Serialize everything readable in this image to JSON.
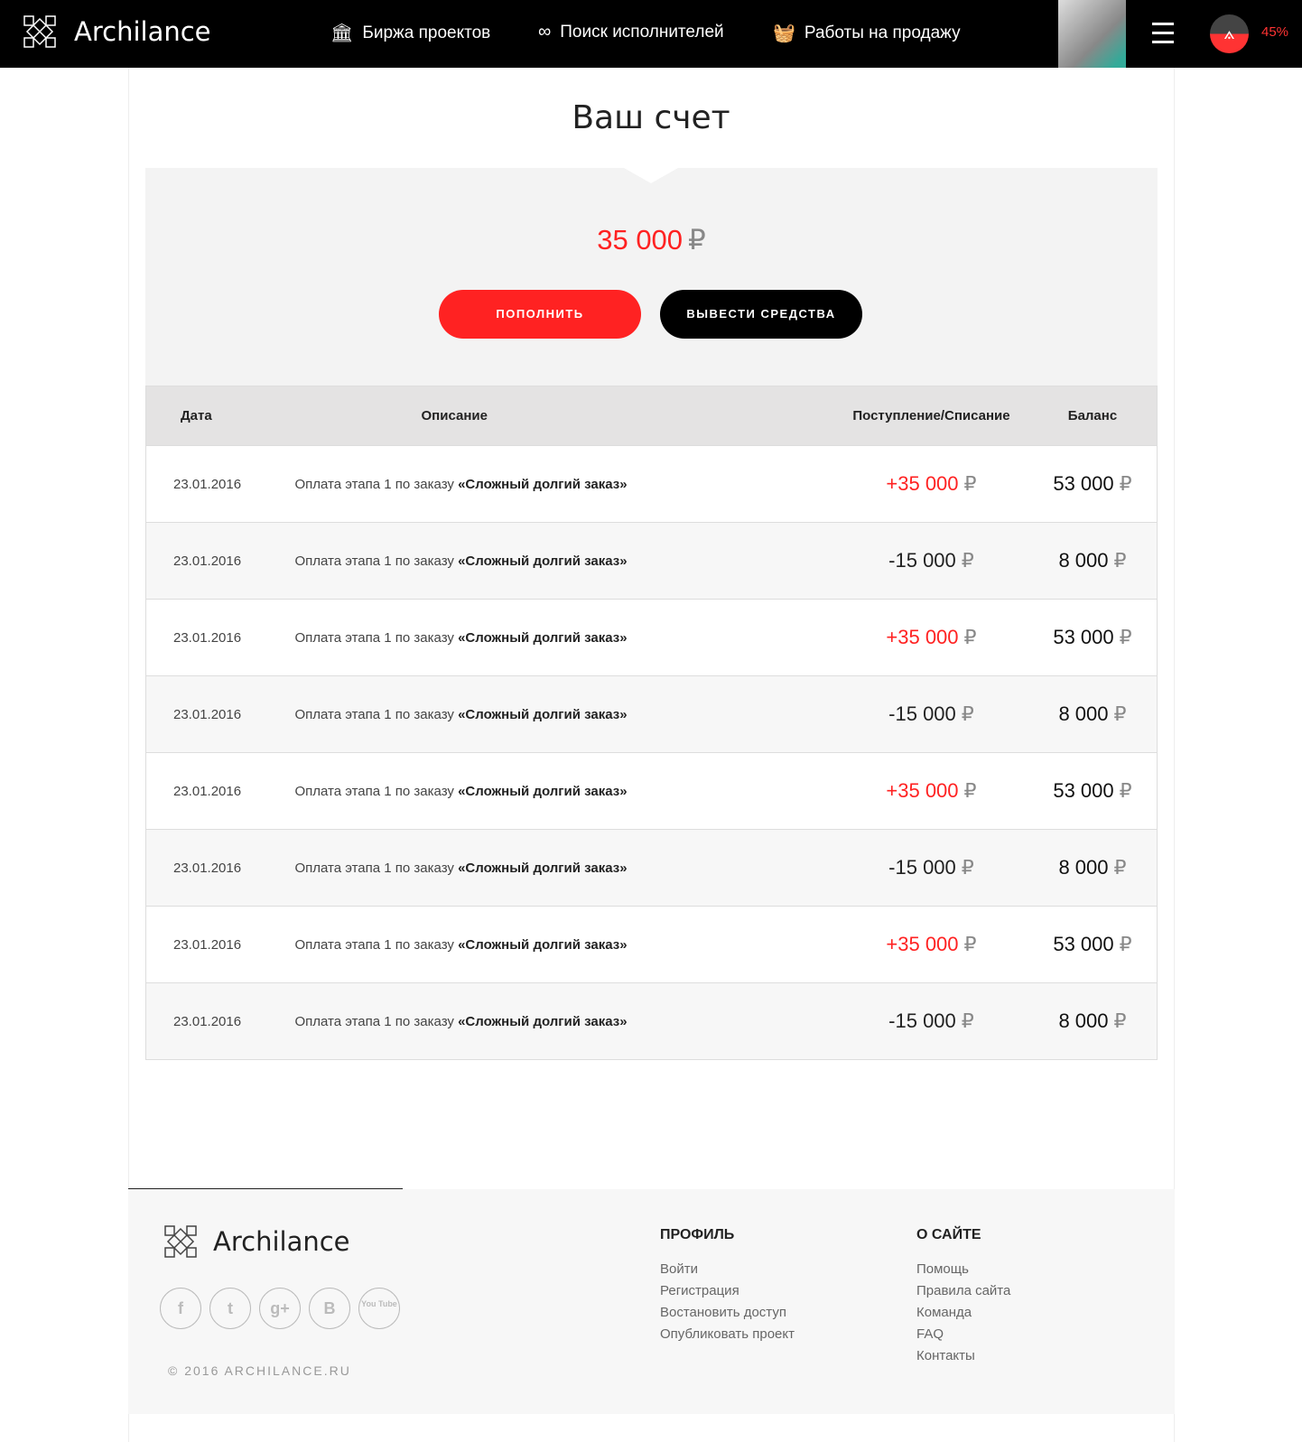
{
  "header": {
    "brand": "Archilance",
    "nav": [
      {
        "icon": "column-icon",
        "label": "Биржа проектов"
      },
      {
        "icon": "binoculars-icon",
        "label": "Поиск исполнителей"
      },
      {
        "icon": "basket-icon",
        "label": "Работы на продажу"
      }
    ],
    "progress": "45%",
    "progress_fraction": 0.45
  },
  "page": {
    "title": "Ваш счет",
    "balance": "35 000",
    "currency": "₽",
    "topup": "ПОПОЛНИТЬ",
    "withdraw": "ВЫВЕСТИ СРЕДСТВА"
  },
  "table": {
    "headers": [
      "Дата",
      "Описание",
      "Поступление/Списание",
      "Баланс"
    ],
    "rows": [
      {
        "date": "23.01.2016",
        "desc": "Оплата этапа 1 по заказу ",
        "order": "«Сложный долгий заказ»",
        "amount": "+35 000",
        "balance": "53 000",
        "type": "plus"
      },
      {
        "date": "23.01.2016",
        "desc": "Оплата этапа 1 по заказу ",
        "order": "«Сложный долгий заказ»",
        "amount": "-15 000",
        "balance": "8 000",
        "type": "minus"
      },
      {
        "date": "23.01.2016",
        "desc": "Оплата этапа 1 по заказу ",
        "order": "«Сложный долгий заказ»",
        "amount": "+35 000",
        "balance": "53 000",
        "type": "plus"
      },
      {
        "date": "23.01.2016",
        "desc": "Оплата этапа 1 по заказу ",
        "order": "«Сложный долгий заказ»",
        "amount": "-15 000",
        "balance": "8 000",
        "type": "minus"
      },
      {
        "date": "23.01.2016",
        "desc": "Оплата этапа 1 по заказу ",
        "order": "«Сложный долгий заказ»",
        "amount": "+35 000",
        "balance": "53 000",
        "type": "plus"
      },
      {
        "date": "23.01.2016",
        "desc": "Оплата этапа 1 по заказу ",
        "order": "«Сложный долгий заказ»",
        "amount": "-15 000",
        "balance": "8 000",
        "type": "minus"
      },
      {
        "date": "23.01.2016",
        "desc": "Оплата этапа 1 по заказу ",
        "order": "«Сложный долгий заказ»",
        "amount": "+35 000",
        "balance": "53 000",
        "type": "plus"
      },
      {
        "date": "23.01.2016",
        "desc": "Оплата этапа 1 по заказу ",
        "order": "«Сложный долгий заказ»",
        "amount": "-15 000",
        "balance": "8 000",
        "type": "minus"
      }
    ]
  },
  "footer": {
    "brand": "Archilance",
    "social": [
      {
        "name": "facebook-icon",
        "glyph": "f"
      },
      {
        "name": "twitter-icon",
        "glyph": "t"
      },
      {
        "name": "google-plus-icon",
        "glyph": "g+"
      },
      {
        "name": "vk-icon",
        "glyph": "B"
      },
      {
        "name": "youtube-icon",
        "glyph": "You Tube"
      }
    ],
    "copyright": "© 2016 ARCHILANCE.RU",
    "profile": {
      "title": "ПРОФИЛЬ",
      "links": [
        "Войти",
        "Регистрация",
        "Востановить доступ",
        "Опубликовать проект"
      ]
    },
    "about": {
      "title": "О САЙТЕ",
      "links": [
        "Помощь",
        "Правила сайта",
        "Команда",
        "FAQ",
        "Контакты"
      ]
    }
  },
  "colors": {
    "accent": "#ff2a2a",
    "header": "#000000"
  }
}
